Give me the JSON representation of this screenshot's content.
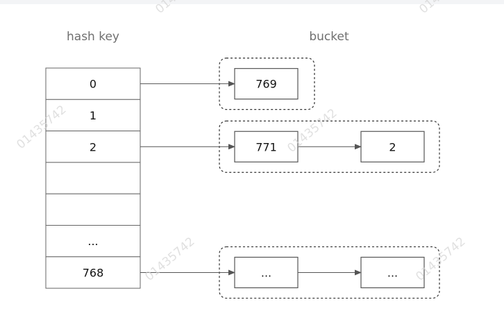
{
  "headers": {
    "hash_key": "hash key",
    "bucket": "bucket"
  },
  "table_cells": [
    "0",
    "1",
    "2",
    "",
    "",
    "...",
    "768"
  ],
  "buckets": [
    {
      "key_index": 0,
      "items": [
        "769"
      ]
    },
    {
      "key_index": 2,
      "items": [
        "771",
        "2"
      ]
    },
    {
      "key_index": 6,
      "items": [
        "...",
        "..."
      ]
    }
  ],
  "watermark": "01435742",
  "colors": {
    "line": "#555555",
    "header_text": "#6f6f6f",
    "watermark": "#d4d4d4"
  }
}
